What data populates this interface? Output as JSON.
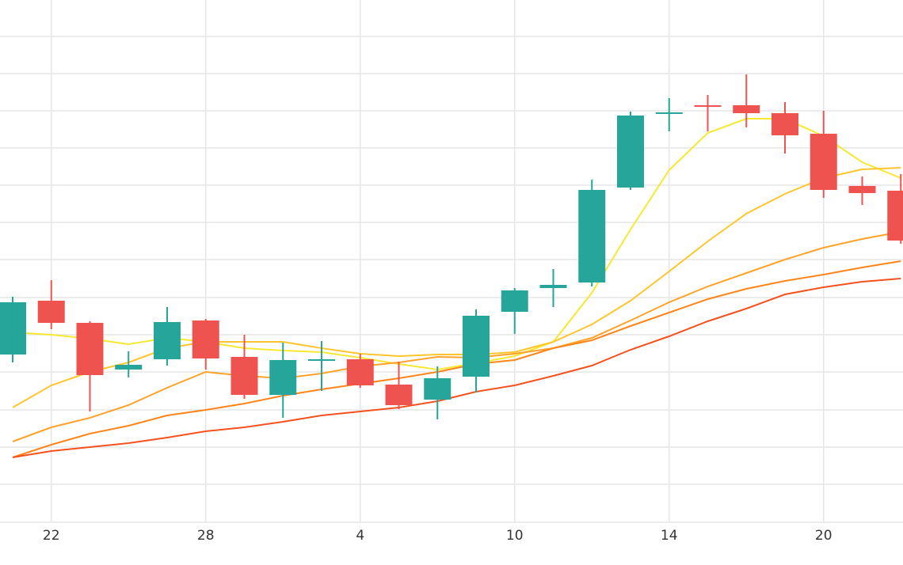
{
  "chart_data": {
    "type": "candlestick",
    "categories": [
      null,
      "22",
      null,
      null,
      null,
      "28",
      null,
      null,
      null,
      "4",
      null,
      null,
      null,
      "10",
      null,
      null,
      null,
      "14",
      null,
      null,
      null,
      "20",
      null,
      null
    ],
    "open": [
      212,
      280,
      252,
      193,
      206,
      255,
      209,
      161,
      205,
      206,
      174,
      155,
      184,
      266,
      296,
      303,
      423,
      517,
      527,
      527,
      517,
      491,
      425,
      419
    ],
    "high": [
      285,
      306,
      254,
      216,
      272,
      257,
      237,
      227,
      229,
      213,
      203,
      197,
      269,
      296,
      320,
      433,
      519,
      536,
      540,
      566,
      531,
      520,
      437,
      440
    ],
    "low": [
      202,
      244,
      140,
      183,
      198,
      193,
      156,
      132,
      166,
      170,
      143,
      130,
      164,
      238,
      272,
      298,
      420,
      494,
      494,
      499,
      466,
      410,
      401,
      352
    ],
    "close": [
      278,
      252,
      186,
      199,
      253,
      207,
      161,
      205,
      206,
      173,
      148,
      182,
      261,
      293,
      300,
      420,
      514,
      518,
      526,
      517,
      489,
      420,
      416,
      356
    ],
    "up_color": "#26a69a",
    "down_color": "#ef5350",
    "series": [
      {
        "color": "#f7e832",
        "values": [
          240,
          237,
          232,
          225,
          233,
          228,
          220,
          217,
          215,
          208,
          200,
          193,
          201,
          210,
          228,
          290,
          370,
          445,
          492,
          510,
          510,
          488,
          455,
          435
        ]
      },
      {
        "color": "#ffc52c",
        "values": [
          145,
          173,
          190,
          202,
          220,
          228,
          228,
          228,
          220,
          213,
          210,
          212,
          212,
          215,
          228,
          250,
          280,
          317,
          355,
          390,
          415,
          435,
          446,
          448
        ]
      },
      {
        "color": "#ffa229",
        "values": [
          102,
          120,
          132,
          148,
          170,
          190,
          185,
          182,
          188,
          197,
          202,
          209,
          208,
          213,
          220,
          233,
          255,
          278,
          298,
          315,
          332,
          347,
          358,
          367
        ]
      },
      {
        "color": "#ff8419",
        "values": [
          82,
          98,
          112,
          122,
          135,
          142,
          150,
          160,
          168,
          175,
          182,
          190,
          200,
          205,
          220,
          230,
          248,
          265,
          282,
          295,
          305,
          313,
          322,
          330
        ]
      },
      {
        "color": "#f4511e",
        "values": [
          82,
          90,
          95,
          100,
          107,
          115,
          120,
          127,
          135,
          140,
          145,
          153,
          165,
          173,
          185,
          198,
          218,
          235,
          254,
          270,
          288,
          297,
          304,
          308
        ]
      }
    ],
    "ylim": [
      0,
      660
    ],
    "yticks": [
      48,
      95,
      142,
      190,
      237,
      284,
      332,
      379,
      426,
      473,
      520,
      567,
      614
    ],
    "grid": true
  }
}
